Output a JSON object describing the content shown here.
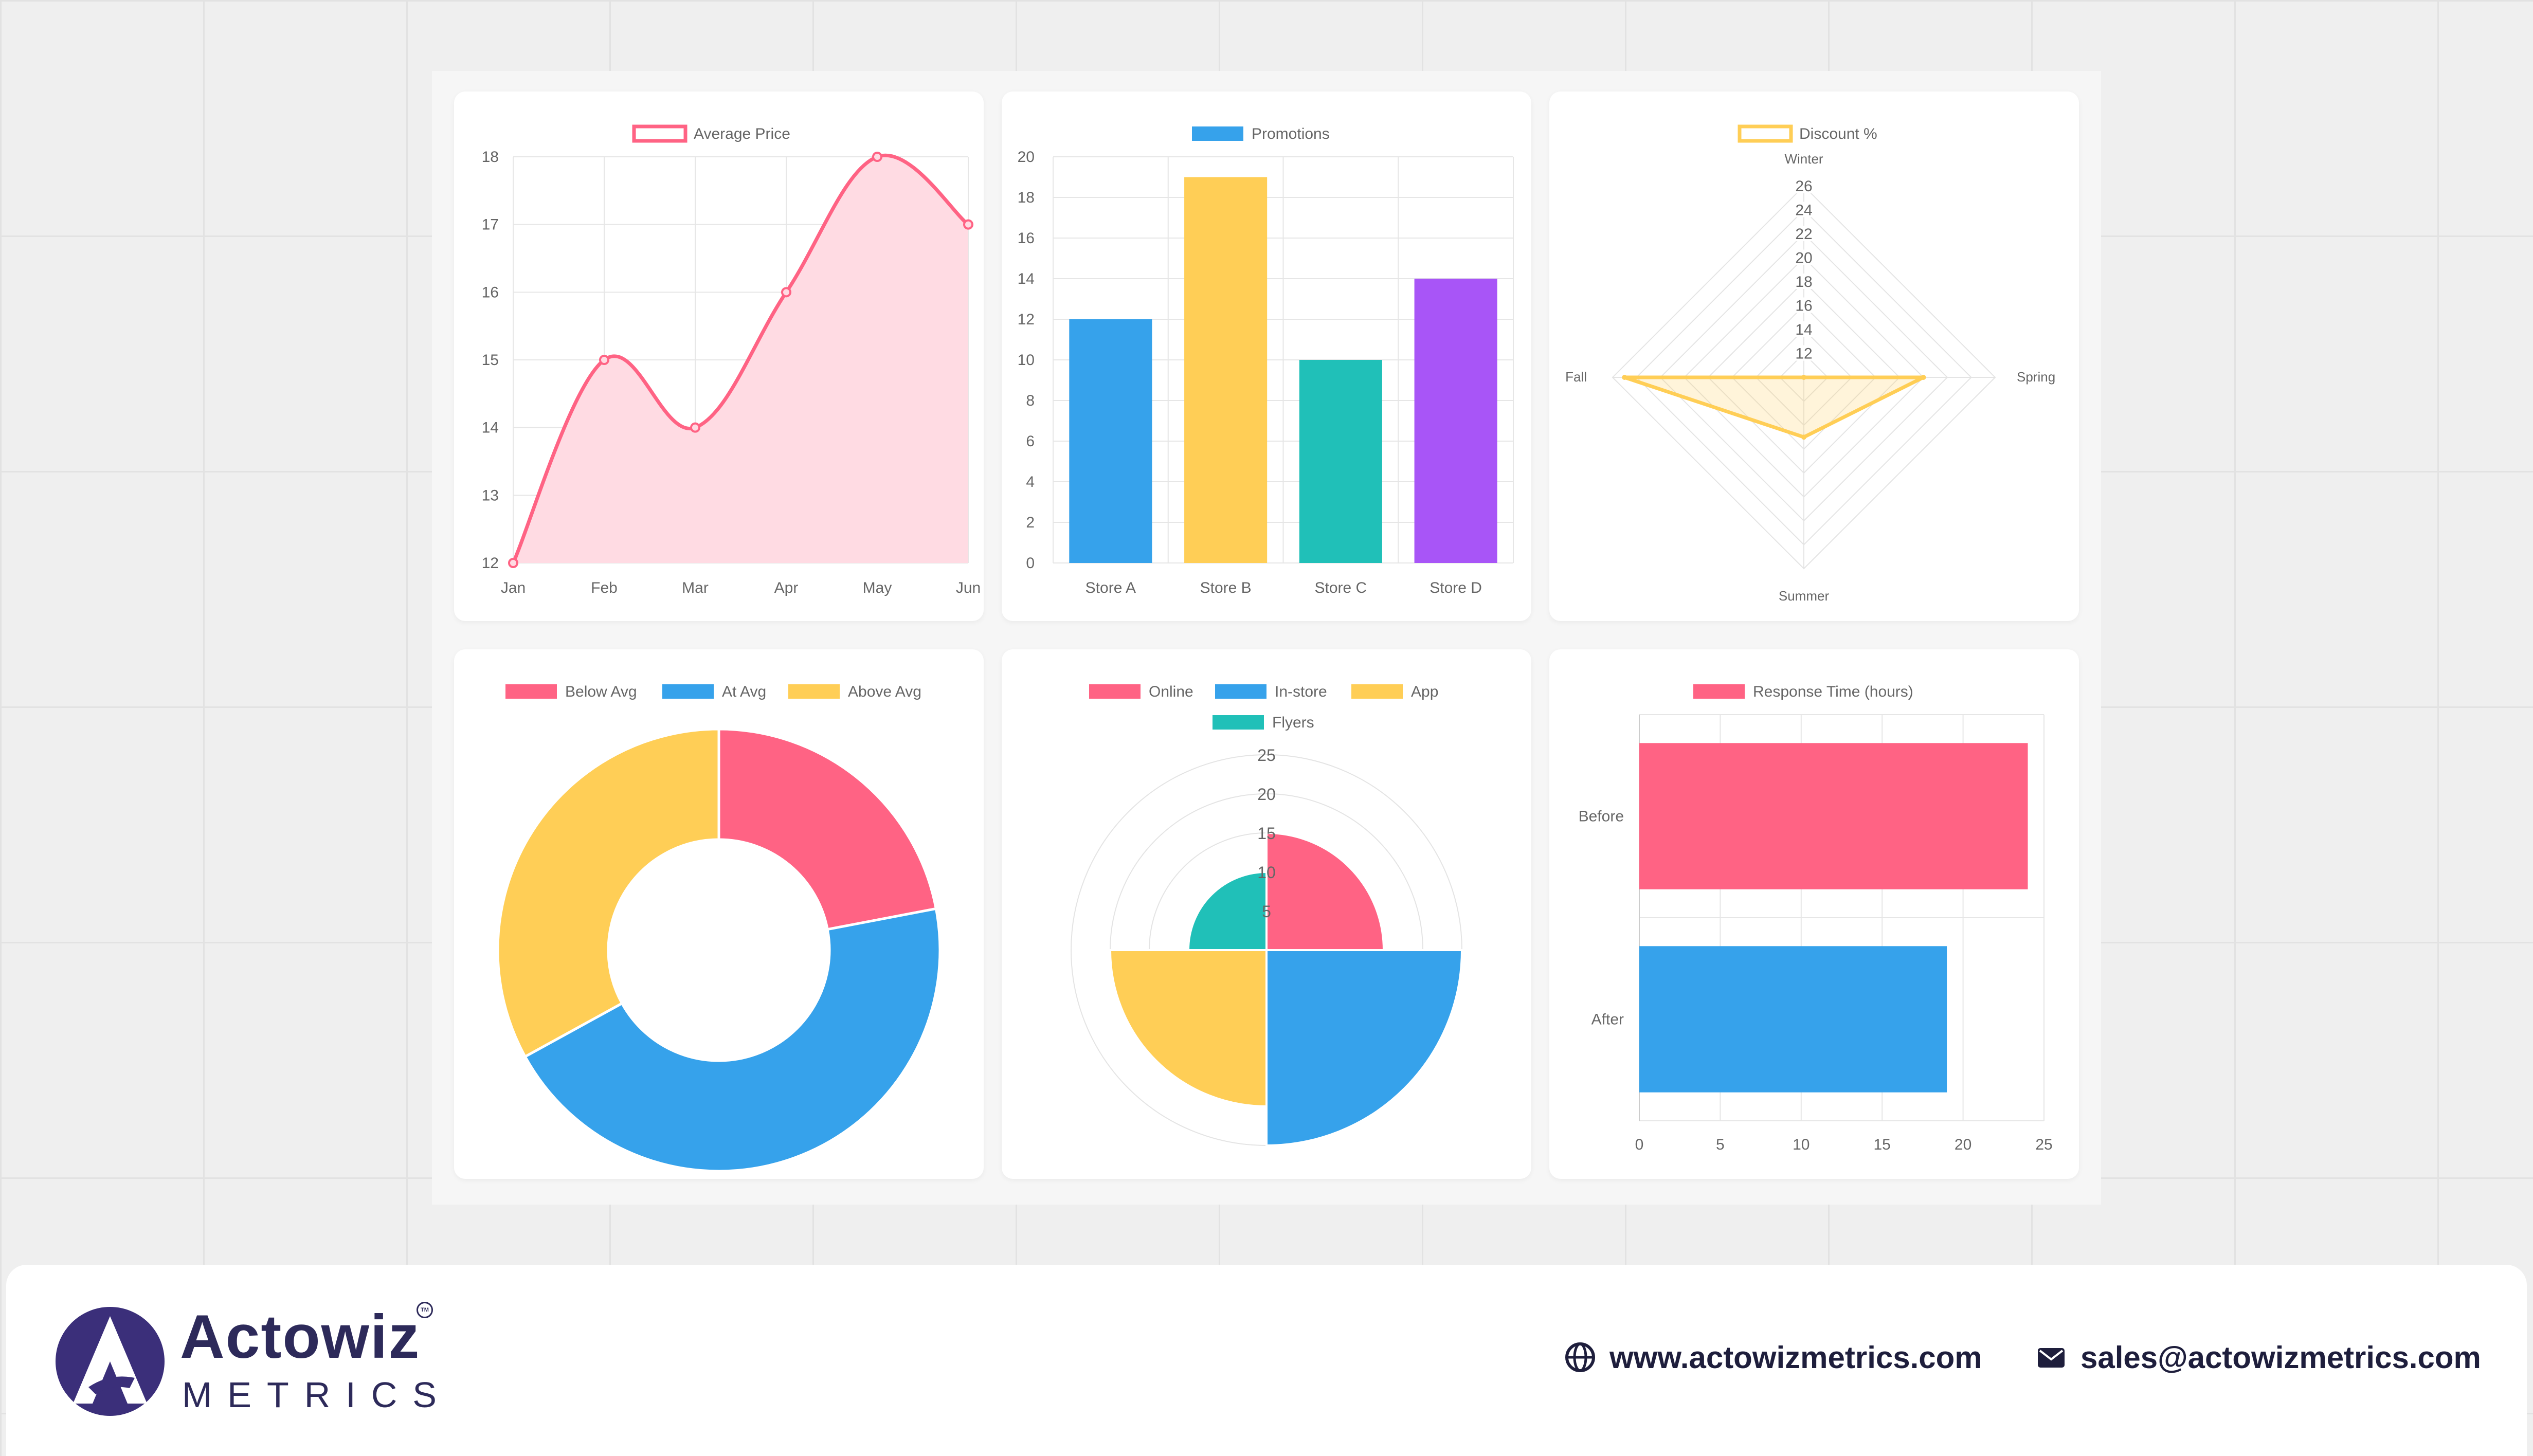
{
  "charts": {
    "line": {
      "type": "line",
      "legend": "Average Price",
      "categories": [
        "Jan",
        "Feb",
        "Mar",
        "Apr",
        "May",
        "Jun"
      ],
      "values": [
        12,
        15,
        14,
        16,
        18,
        17
      ],
      "ylim": [
        12,
        18
      ],
      "yticks": [
        "12",
        "13",
        "14",
        "15",
        "16",
        "17",
        "18"
      ],
      "color": "#ff6384",
      "fill": "#ffdbe3"
    },
    "bar": {
      "type": "bar",
      "legend": "Promotions",
      "categories": [
        "Store A",
        "Store B",
        "Store C",
        "Store D"
      ],
      "values": [
        12,
        19,
        10,
        14
      ],
      "ylim": [
        0,
        20
      ],
      "yticks": [
        "0",
        "2",
        "4",
        "6",
        "8",
        "10",
        "12",
        "14",
        "16",
        "18",
        "20"
      ],
      "colors": [
        "#36a2eb",
        "#ffce56",
        "#20c0b8",
        "#a855f7"
      ],
      "legend_color": "#36a2eb"
    },
    "radar": {
      "type": "radar",
      "legend": "Discount %",
      "labels": [
        "Winter",
        "Spring",
        "Summer",
        "Fall"
      ],
      "values": [
        10,
        20,
        15,
        25
      ],
      "rlim": [
        10,
        26
      ],
      "ticks": [
        "12",
        "14",
        "16",
        "18",
        "20",
        "22",
        "24",
        "26"
      ],
      "color": "#ffce56"
    },
    "doughnut": {
      "type": "doughnut",
      "labels": [
        "Below Avg",
        "At Avg",
        "Above Avg"
      ],
      "values": [
        22,
        45,
        33
      ],
      "colors": [
        "#ff6384",
        "#36a2eb",
        "#ffce56"
      ]
    },
    "polar": {
      "type": "polarArea",
      "labels": [
        "Online",
        "In-store",
        "App",
        "Flyers"
      ],
      "values": [
        15,
        25,
        20,
        10
      ],
      "rmax": 25,
      "ticks": [
        "5",
        "10",
        "15",
        "20",
        "25"
      ],
      "colors": [
        "#ff6384",
        "#36a2eb",
        "#ffce56",
        "#20c0b8"
      ]
    },
    "hbar": {
      "type": "bar",
      "orientation": "horizontal",
      "legend": "Response Time (hours)",
      "categories": [
        "Before",
        "After"
      ],
      "values": [
        24,
        19
      ],
      "xlim": [
        0,
        25
      ],
      "xticks": [
        "0",
        "5",
        "10",
        "15",
        "20",
        "25"
      ],
      "colors": [
        "#ff6384",
        "#36a2eb"
      ]
    }
  },
  "brand": {
    "name": "Actowiz",
    "sub": "METRICS",
    "tm": "TM",
    "website": "www.actowizmetrics.com",
    "email": "sales@actowizmetrics.com"
  }
}
